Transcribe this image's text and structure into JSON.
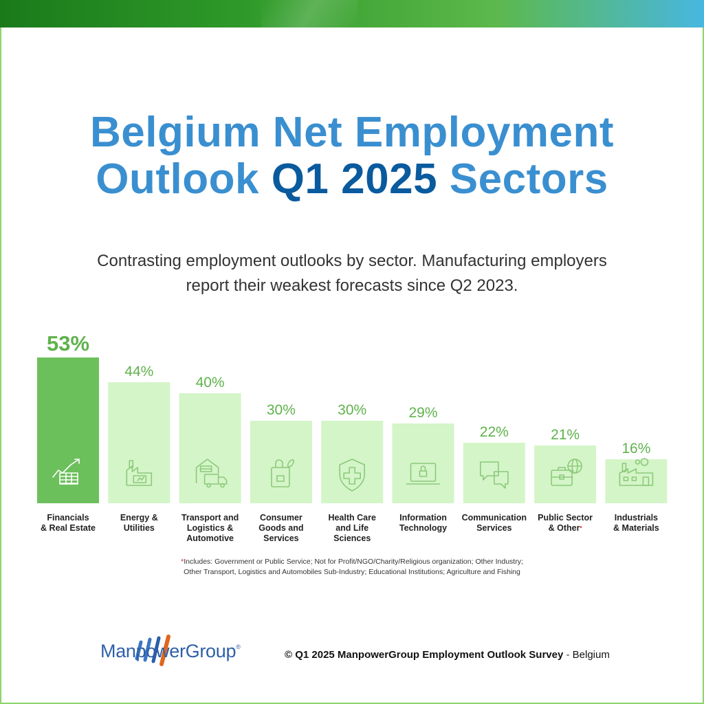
{
  "title": {
    "line1": "Belgium Net Employment",
    "line2_a": "Outlook ",
    "line2_b": "Q1 2025",
    "line2_c": " Sectors"
  },
  "subtitle": "Contrasting employment outlooks by sector. Manufacturing employers report their weakest forecasts since Q2 2023.",
  "chart_data": {
    "type": "bar",
    "categories": [
      "Financials & Real Estate",
      "Energy & Utilities",
      "Transport and Logistics & Automotive",
      "Consumer Goods and Services",
      "Health Care and Life Sciences",
      "Information Technology",
      "Communication Services",
      "Public Sector & Other",
      "Industrials & Materials"
    ],
    "category_lines": [
      [
        "Financials",
        "& Real Estate"
      ],
      [
        "Energy &",
        "Utilities"
      ],
      [
        "Transport and",
        "Logistics &",
        "Automotive"
      ],
      [
        "Consumer",
        "Goods and",
        "Services"
      ],
      [
        "Health Care",
        "and Life",
        "Sciences"
      ],
      [
        "Information",
        "Technology"
      ],
      [
        "Communication",
        "Services"
      ],
      [
        "Public Sector",
        "& Other"
      ],
      [
        "Industrials",
        "& Materials"
      ]
    ],
    "values": [
      53,
      44,
      40,
      30,
      30,
      29,
      22,
      21,
      16
    ],
    "labels": [
      "53%",
      "44%",
      "40%",
      "30%",
      "30%",
      "29%",
      "22%",
      "21%",
      "16%"
    ],
    "icons": [
      "chart-growth-icon",
      "factory-battery-icon",
      "warehouse-truck-icon",
      "shopping-bag-icon",
      "shield-cross-icon",
      "laptop-lock-icon",
      "chat-bubbles-icon",
      "briefcase-globe-icon",
      "industrial-plant-icon"
    ],
    "highlight_index": 0,
    "footnote_marker_index": 7,
    "ylim": [
      0,
      53
    ],
    "colors": {
      "highlight": "#6cc05c",
      "bar": "#d4f5c8",
      "value_text": "#5fb24c",
      "highlight_text": "#5fb24c",
      "icon": "#8cc97a",
      "icon_highlight": "#ffffff"
    }
  },
  "footnote": {
    "marker": "*",
    "line1": "Includes: Government or Public Service; Not for Profit/NGO/Charity/Religious organization; Other Industry;",
    "line2": "Other Transport, Logistics and Automobiles Sub-Industry; Educational Institutions; Agriculture and Fishing"
  },
  "brand": {
    "name": "ManpowerGroup",
    "reg": "®",
    "colors": [
      "#3b76c4",
      "#2a5fa8",
      "#e0661f"
    ]
  },
  "copyright": {
    "bold": "© Q1 2025 ManpowerGroup Employment Outlook Survey",
    "sep": " - ",
    "country": "Belgium"
  }
}
